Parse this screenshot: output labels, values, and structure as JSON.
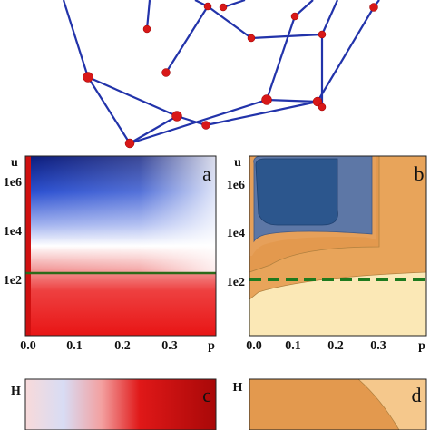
{
  "panels": [
    {
      "label": "a",
      "y_axis": "u",
      "x_axis": "p",
      "yticks": [
        "1e6",
        "1e4",
        "1e2"
      ],
      "xticks": [
        "0.0",
        "0.1",
        "0.2",
        "0.3"
      ]
    },
    {
      "label": "b",
      "y_axis": "u",
      "x_axis": "p",
      "yticks": [
        "1e6",
        "1e4",
        "1e2"
      ],
      "xticks": [
        "0.0",
        "0.1",
        "0.2",
        "0.3"
      ]
    },
    {
      "label": "c",
      "y_axis": "H"
    },
    {
      "label": "d",
      "y_axis": "H"
    }
  ]
}
